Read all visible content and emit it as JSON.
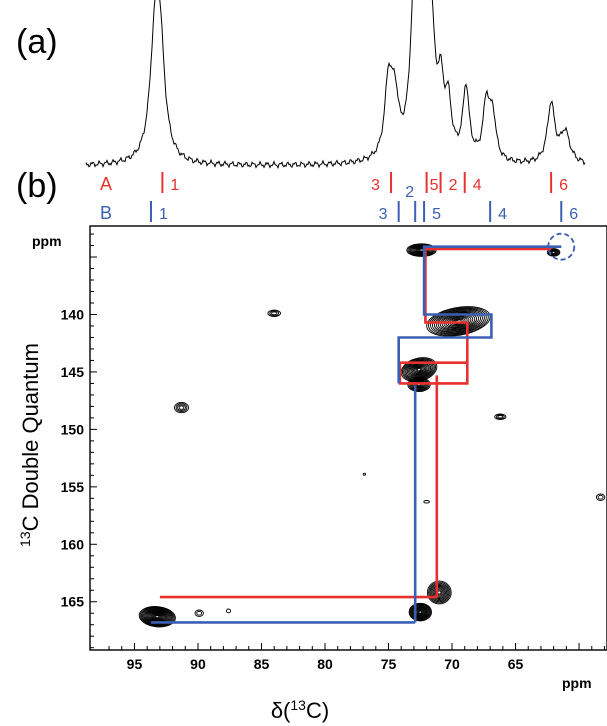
{
  "panels": {
    "a_label": "(a)",
    "b_label": "(b)"
  },
  "chart_data": {
    "type": "contour",
    "spectrum_1d": {
      "peaks": [
        {
          "x": 93.4,
          "height": 0.66,
          "width": 0.45
        },
        {
          "x": 93.0,
          "height": 0.7,
          "width": 0.45
        },
        {
          "x": 75.0,
          "height": 0.48,
          "width": 0.35
        },
        {
          "x": 74.5,
          "height": 0.34,
          "width": 0.35
        },
        {
          "x": 73.0,
          "height": 0.8,
          "width": 0.35
        },
        {
          "x": 72.5,
          "height": 0.82,
          "width": 0.35
        },
        {
          "x": 72.1,
          "height": 1.0,
          "width": 0.35
        },
        {
          "x": 71.6,
          "height": 0.55,
          "width": 0.3
        },
        {
          "x": 70.9,
          "height": 0.4,
          "width": 0.3
        },
        {
          "x": 70.3,
          "height": 0.32,
          "width": 0.3
        },
        {
          "x": 68.9,
          "height": 0.46,
          "width": 0.3
        },
        {
          "x": 67.3,
          "height": 0.37,
          "width": 0.3
        },
        {
          "x": 66.8,
          "height": 0.28,
          "width": 0.3
        },
        {
          "x": 62.2,
          "height": 0.38,
          "width": 0.35
        },
        {
          "x": 61.1,
          "height": 0.2,
          "width": 0.45
        }
      ]
    },
    "assignments": {
      "A": {
        "letter": "A",
        "color": "#e8312f",
        "marks": [
          {
            "label": "1",
            "x": 92.8
          },
          {
            "label": "3",
            "x": 74.8
          },
          {
            "label": "5",
            "x": 72.0
          },
          {
            "label": "2",
            "x": 70.9
          },
          {
            "label": "4",
            "x": 69.0
          },
          {
            "label": "6",
            "x": 62.2
          }
        ]
      },
      "B": {
        "letter": "B",
        "color": "#3b5fb5",
        "marks": [
          {
            "label": "1",
            "x": 93.7
          },
          {
            "label": "3",
            "x": 74.2
          },
          {
            "label": "2",
            "x": 72.9
          },
          {
            "label": "5",
            "x": 72.2
          },
          {
            "label": "4",
            "x": 67.0
          },
          {
            "label": "6",
            "x": 61.4
          }
        ]
      }
    },
    "x_axis": {
      "label_main": "δ(",
      "label_sup": "13",
      "label_tail": "C)",
      "unit": "ppm",
      "range": [
        98.5,
        57.8
      ],
      "ticks": [
        95,
        90,
        85,
        80,
        75,
        70,
        65
      ],
      "tick_labels": [
        "95",
        "90",
        "85",
        "80",
        "75",
        "70",
        "65"
      ]
    },
    "y_axis": {
      "label_sup": "13",
      "label_main": "C Double Quantum",
      "unit": "ppm",
      "range": [
        132.3,
        169.2
      ],
      "ticks": [
        140,
        145,
        150,
        155,
        160,
        165
      ],
      "tick_labels": [
        "140",
        "145",
        "150",
        "155",
        "160",
        "165"
      ]
    },
    "cross_peaks": [
      {
        "x": 93.2,
        "y": 166.3,
        "rx": 2.6,
        "ry": 1.6,
        "levels": 16,
        "tilt": 6
      },
      {
        "x": 72.5,
        "y": 165.9,
        "rx": 1.6,
        "ry": 1.4,
        "levels": 12,
        "tilt": 0
      },
      {
        "x": 71.0,
        "y": 164.2,
        "rx": 1.7,
        "ry": 1.8,
        "levels": 10,
        "tilt": 0
      },
      {
        "x": 72.4,
        "y": 134.4,
        "rx": 2.1,
        "ry": 1.0,
        "levels": 12,
        "tilt": 0
      },
      {
        "x": 62.0,
        "y": 134.6,
        "rx": 0.9,
        "ry": 0.6,
        "levels": 6,
        "tilt": 0
      },
      {
        "x": 69.5,
        "y": 140.6,
        "rx": 4.6,
        "ry": 2.2,
        "levels": 16,
        "tilt": -10
      },
      {
        "x": 72.6,
        "y": 144.8,
        "rx": 2.6,
        "ry": 1.8,
        "levels": 14,
        "tilt": -15
      },
      {
        "x": 72.6,
        "y": 146.1,
        "rx": 1.6,
        "ry": 1.1,
        "levels": 9,
        "tilt": 0
      },
      {
        "x": 84.0,
        "y": 139.9,
        "rx": 0.9,
        "ry": 0.5,
        "levels": 3,
        "tilt": 0
      },
      {
        "x": 91.3,
        "y": 148.1,
        "rx": 1.0,
        "ry": 0.8,
        "levels": 4,
        "tilt": 0
      },
      {
        "x": 66.2,
        "y": 148.9,
        "rx": 0.8,
        "ry": 0.45,
        "levels": 3,
        "tilt": 0
      },
      {
        "x": 89.9,
        "y": 166.0,
        "rx": 0.6,
        "ry": 0.5,
        "levels": 2,
        "tilt": 0
      },
      {
        "x": 87.6,
        "y": 165.8,
        "rx": 0.3,
        "ry": 0.3,
        "levels": 1,
        "tilt": 0
      },
      {
        "x": 72.0,
        "y": 156.3,
        "rx": 0.4,
        "ry": 0.2,
        "levels": 1,
        "tilt": 0
      },
      {
        "x": 58.3,
        "y": 155.9,
        "rx": 0.6,
        "ry": 0.5,
        "levels": 2,
        "tilt": 0
      },
      {
        "x": 76.9,
        "y": 153.9,
        "rx": 0.1,
        "ry": 0.1,
        "levels": 1,
        "tilt": 0
      }
    ],
    "connectivity": {
      "A": {
        "color": "#e8312f",
        "segments": [
          [
            [
              93.0,
              164.6
            ],
            [
              71.2,
              164.6
            ]
          ],
          [
            [
              71.2,
              164.6
            ],
            [
              71.2,
              145.3
            ]
          ],
          [
            [
              74.1,
              144.2
            ],
            [
              68.8,
              144.2
            ],
            [
              68.8,
              146.0
            ],
            [
              74.1,
              146.0
            ],
            [
              74.1,
              144.2
            ]
          ],
          [
            [
              68.8,
              144.2
            ],
            [
              68.8,
              140.7
            ],
            [
              72.1,
              140.7
            ],
            [
              72.1,
              134.3
            ],
            [
              62.2,
              134.3
            ]
          ]
        ]
      },
      "B": {
        "color": "#3b5fb5",
        "segments": [
          [
            [
              93.7,
              166.8
            ],
            [
              72.9,
              166.8
            ]
          ],
          [
            [
              72.9,
              166.8
            ],
            [
              72.9,
              146.2
            ]
          ],
          [
            [
              74.2,
              146.0
            ],
            [
              74.2,
              142.0
            ],
            [
              66.9,
              142.0
            ],
            [
              66.9,
              140.0
            ],
            [
              72.2,
              140.0
            ],
            [
              72.2,
              134.1
            ],
            [
              61.4,
              134.1
            ]
          ]
        ]
      },
      "circle_marker": {
        "x": 61.4,
        "y": 134.1,
        "color": "#3b5fb5"
      }
    }
  }
}
